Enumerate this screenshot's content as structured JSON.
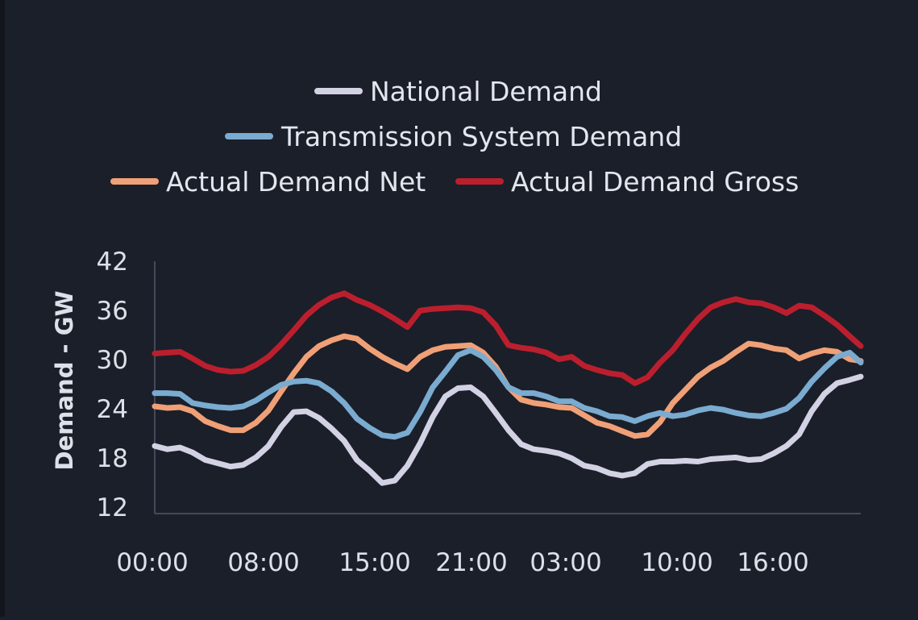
{
  "chart_data": {
    "type": "line",
    "title": "",
    "xlabel": "",
    "ylabel": "Demand - GW",
    "ylim": [
      12,
      42
    ],
    "yticks": [
      "42",
      "36",
      "30",
      "24",
      "18",
      "12"
    ],
    "xlim": [
      0,
      95
    ],
    "x_tick_labels": [
      "00:00",
      "08:00",
      "15:00",
      "21:00",
      "03:00",
      "10:00",
      "16:00"
    ],
    "legend_position": "top-center",
    "series": [
      {
        "name": "National Demand",
        "color": "#d3d1e4",
        "values": [
          20.2,
          19.8,
          20.0,
          19.4,
          18.5,
          18.1,
          17.7,
          17.9,
          18.8,
          20.2,
          22.5,
          24.3,
          24.4,
          23.6,
          22.3,
          20.8,
          18.5,
          17.2,
          15.7,
          16.0,
          17.8,
          20.5,
          23.7,
          26.2,
          27.2,
          27.3,
          26.2,
          24.2,
          22.1,
          20.4,
          19.8,
          19.6,
          19.3,
          18.7,
          17.8,
          17.5,
          16.9,
          16.6,
          16.9,
          18.0,
          18.3,
          18.3,
          18.4,
          18.3,
          18.6,
          18.7,
          18.8,
          18.5,
          18.6,
          19.3,
          20.2,
          21.6,
          24.4,
          26.5,
          27.8,
          28.2,
          28.6
        ],
        "x": [
          0,
          1.7,
          3.4,
          5.1,
          6.8,
          8.5,
          10.2,
          11.9,
          13.6,
          15.3,
          17,
          18.7,
          20.4,
          22.1,
          23.8,
          25.5,
          27.2,
          28.9,
          30.6,
          32.3,
          34,
          35.7,
          37.4,
          39.1,
          40.8,
          42.5,
          44.2,
          45.9,
          47.6,
          49.3,
          51,
          52.7,
          54.4,
          56.1,
          57.8,
          59.5,
          61.2,
          62.9,
          64.6,
          66.3,
          68,
          69.7,
          71.4,
          73.1,
          74.8,
          76.5,
          78.2,
          79.9,
          81.6,
          83.3,
          85,
          86.7,
          88.4,
          90.1,
          91.8,
          93.5,
          95
        ]
      },
      {
        "name": "Transmission System Demand",
        "color": "#7aabd0",
        "values": [
          26.6,
          26.6,
          26.5,
          25.4,
          25.1,
          24.9,
          24.8,
          25.0,
          25.7,
          26.7,
          27.6,
          28.0,
          28.1,
          27.8,
          26.8,
          25.4,
          23.5,
          22.4,
          21.5,
          21.3,
          21.8,
          24.3,
          27.3,
          29.2,
          31.2,
          31.8,
          31.0,
          29.4,
          27.3,
          26.6,
          26.6,
          26.2,
          25.6,
          25.6,
          24.8,
          24.4,
          23.8,
          23.7,
          23.2,
          23.8,
          24.2,
          23.8,
          24.0,
          24.5,
          24.8,
          24.6,
          24.2,
          23.9,
          23.8,
          24.2,
          24.7,
          26.0,
          28.0,
          29.6,
          31.0,
          31.5,
          30.3
        ],
        "x": [
          0,
          1.7,
          3.4,
          5.1,
          6.8,
          8.5,
          10.2,
          11.9,
          13.6,
          15.3,
          17,
          18.7,
          20.4,
          22.1,
          23.8,
          25.5,
          27.2,
          28.9,
          30.6,
          32.3,
          34,
          35.7,
          37.4,
          39.1,
          40.8,
          42.5,
          44.2,
          45.9,
          47.6,
          49.3,
          51,
          52.7,
          54.4,
          56.1,
          57.8,
          59.5,
          61.2,
          62.9,
          64.6,
          66.3,
          68,
          69.7,
          71.4,
          73.1,
          74.8,
          76.5,
          78.2,
          79.9,
          81.6,
          83.3,
          85,
          86.7,
          88.4,
          90.1,
          91.8,
          93.5,
          95
        ]
      },
      {
        "name": "Actual Demand Net",
        "color": "#f0a077",
        "values": [
          25.0,
          24.8,
          24.9,
          24.4,
          23.2,
          22.6,
          22.1,
          22.1,
          23.0,
          24.5,
          26.8,
          29.0,
          31.0,
          32.3,
          33.0,
          33.5,
          33.2,
          32.0,
          31.0,
          30.2,
          29.5,
          31.0,
          31.8,
          32.2,
          32.3,
          32.4,
          31.5,
          29.8,
          27.3,
          25.8,
          25.4,
          25.2,
          24.9,
          24.8,
          23.9,
          23.0,
          22.6,
          22.0,
          21.4,
          21.6,
          23.1,
          25.4,
          27.0,
          28.6,
          29.7,
          30.5,
          31.6,
          32.6,
          32.4,
          32.0,
          31.8,
          30.8,
          31.4,
          31.8,
          31.6,
          30.7,
          30.5
        ],
        "x": [
          0,
          1.7,
          3.4,
          5.1,
          6.8,
          8.5,
          10.2,
          11.9,
          13.6,
          15.3,
          17,
          18.7,
          20.4,
          22.1,
          23.8,
          25.5,
          27.2,
          28.9,
          30.6,
          32.3,
          34,
          35.7,
          37.4,
          39.1,
          40.8,
          42.5,
          44.2,
          45.9,
          47.6,
          49.3,
          51,
          52.7,
          54.4,
          56.1,
          57.8,
          59.5,
          61.2,
          62.9,
          64.6,
          66.3,
          68,
          69.7,
          71.4,
          73.1,
          74.8,
          76.5,
          78.2,
          79.9,
          81.6,
          83.3,
          85,
          86.7,
          88.4,
          90.1,
          91.8,
          93.5,
          95
        ]
      },
      {
        "name": "Actual Demand Gross",
        "color": "#bb1f2e",
        "values": [
          31.4,
          31.5,
          31.6,
          30.8,
          29.9,
          29.4,
          29.2,
          29.3,
          30.0,
          31.0,
          32.5,
          34.2,
          36.0,
          37.3,
          38.2,
          38.7,
          37.9,
          37.3,
          36.5,
          35.6,
          34.6,
          36.6,
          36.8,
          36.9,
          37.0,
          36.9,
          36.4,
          34.8,
          32.4,
          32.1,
          31.9,
          31.5,
          30.7,
          31.0,
          29.9,
          29.4,
          29.0,
          28.8,
          27.8,
          28.5,
          30.3,
          31.8,
          33.8,
          35.6,
          37.0,
          37.6,
          38.0,
          37.6,
          37.5,
          37.0,
          36.3,
          37.2,
          37.0,
          36.0,
          34.9,
          33.5,
          32.3
        ],
        "x": [
          0,
          1.7,
          3.4,
          5.1,
          6.8,
          8.5,
          10.2,
          11.9,
          13.6,
          15.3,
          17,
          18.7,
          20.4,
          22.1,
          23.8,
          25.5,
          27.2,
          28.9,
          30.6,
          32.3,
          34,
          35.7,
          37.4,
          39.1,
          40.8,
          42.5,
          44.2,
          45.9,
          47.6,
          49.3,
          51,
          52.7,
          54.4,
          56.1,
          57.8,
          59.5,
          61.2,
          62.9,
          64.6,
          66.3,
          68,
          69.7,
          71.4,
          73.1,
          74.8,
          76.5,
          78.2,
          79.9,
          81.6,
          83.3,
          85,
          86.7,
          88.4,
          90.1,
          91.8,
          93.5,
          95
        ]
      }
    ]
  }
}
